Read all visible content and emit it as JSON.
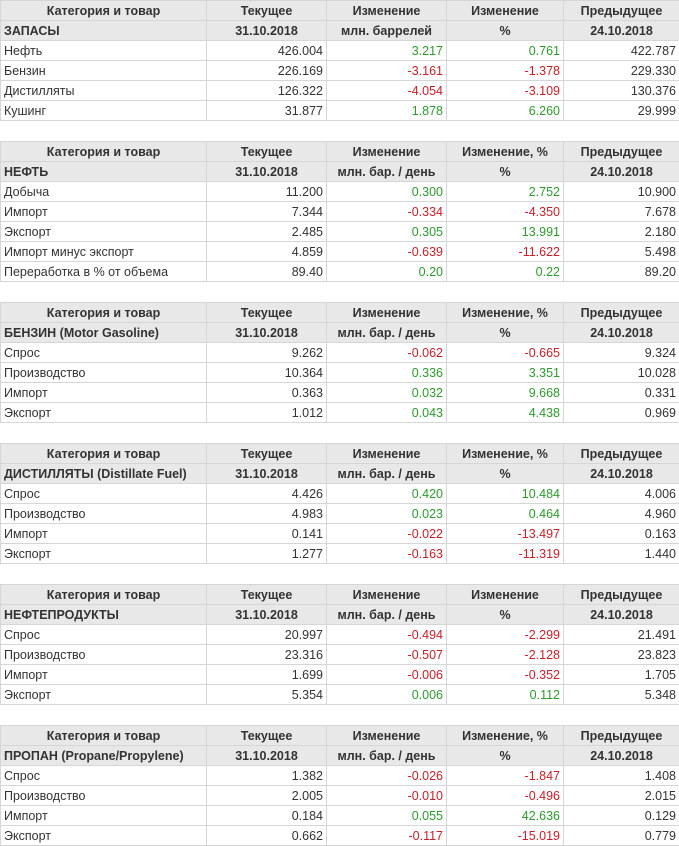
{
  "colors": {
    "positive": "#2e9a2e",
    "negative": "#c8202a",
    "header_bg": "#e8e8e8"
  },
  "tables": [
    {
      "headers": [
        "Категория и товар",
        "Текущее",
        "Изменение",
        "Изменение",
        "Предыдущее"
      ],
      "subheaders": [
        "ЗАПАСЫ",
        "31.10.2018",
        "млн. баррелей",
        "%",
        "24.10.2018"
      ],
      "rows": [
        [
          "Нефть",
          "426.004",
          "3.217",
          "0.761",
          "422.787"
        ],
        [
          "Бензин",
          "226.169",
          "-3.161",
          "-1.378",
          "229.330"
        ],
        [
          "Дистилляты",
          "126.322",
          "-4.054",
          "-3.109",
          "130.376"
        ],
        [
          "Кушинг",
          "31.877",
          "1.878",
          "6.260",
          "29.999"
        ]
      ]
    },
    {
      "headers": [
        "Категория и товар",
        "Текущее",
        "Изменение",
        "Изменение, %",
        "Предыдущее"
      ],
      "subheaders": [
        "НЕФТЬ",
        "31.10.2018",
        "млн. бар. / день",
        "%",
        "24.10.2018"
      ],
      "rows": [
        [
          "Добыча",
          "11.200",
          "0.300",
          "2.752",
          "10.900"
        ],
        [
          "Импорт",
          "7.344",
          "-0.334",
          "-4.350",
          "7.678"
        ],
        [
          "Экспорт",
          "2.485",
          "0.305",
          "13.991",
          "2.180"
        ],
        [
          "Импорт минус экспорт",
          "4.859",
          "-0.639",
          "-11.622",
          "5.498"
        ],
        [
          "Переработка в % от объема",
          "89.40",
          "0.20",
          "0.22",
          "89.20"
        ]
      ]
    },
    {
      "headers": [
        "Категория и товар",
        "Текущее",
        "Изменение",
        "Изменение, %",
        "Предыдущее"
      ],
      "subheaders": [
        "БЕНЗИН (Motor Gasoline)",
        "31.10.2018",
        "млн. бар. / день",
        "%",
        "24.10.2018"
      ],
      "rows": [
        [
          "Спрос",
          "9.262",
          "-0.062",
          "-0.665",
          "9.324"
        ],
        [
          "Производство",
          "10.364",
          "0.336",
          "3.351",
          "10.028"
        ],
        [
          "Импорт",
          "0.363",
          "0.032",
          "9.668",
          "0.331"
        ],
        [
          "Экспорт",
          "1.012",
          "0.043",
          "4.438",
          "0.969"
        ]
      ]
    },
    {
      "headers": [
        "Категория и товар",
        "Текущее",
        "Изменение",
        "Изменение, %",
        "Предыдущее"
      ],
      "subheaders": [
        "ДИСТИЛЛЯТЫ (Distillate Fuel)",
        "31.10.2018",
        "млн. бар. / день",
        "%",
        "24.10.2018"
      ],
      "rows": [
        [
          "Спрос",
          "4.426",
          "0.420",
          "10.484",
          "4.006"
        ],
        [
          "Производство",
          "4.983",
          "0.023",
          "0.464",
          "4.960"
        ],
        [
          "Импорт",
          "0.141",
          "-0.022",
          "-13.497",
          "0.163"
        ],
        [
          "Экспорт",
          "1.277",
          "-0.163",
          "-11.319",
          "1.440"
        ]
      ]
    },
    {
      "headers": [
        "Категория и товар",
        "Текущее",
        "Изменение",
        "Изменение",
        "Предыдущее"
      ],
      "subheaders": [
        "НЕФТЕПРОДУКТЫ",
        "31.10.2018",
        "млн. бар. / день",
        "%",
        "24.10.2018"
      ],
      "rows": [
        [
          "Спрос",
          "20.997",
          "-0.494",
          "-2.299",
          "21.491"
        ],
        [
          "Производство",
          "23.316",
          "-0.507",
          "-2.128",
          "23.823"
        ],
        [
          "Импорт",
          "1.699",
          "-0.006",
          "-0.352",
          "1.705"
        ],
        [
          "Экспорт",
          "5.354",
          "0.006",
          "0.112",
          "5.348"
        ]
      ]
    },
    {
      "headers": [
        "Категория и товар",
        "Текущее",
        "Изменение",
        "Изменение, %",
        "Предыдущее"
      ],
      "subheaders": [
        "ПРОПАН (Propane/Propylene)",
        "31.10.2018",
        "млн. бар. / день",
        "%",
        "24.10.2018"
      ],
      "rows": [
        [
          "Спрос",
          "1.382",
          "-0.026",
          "-1.847",
          "1.408"
        ],
        [
          "Производство",
          "2.005",
          "-0.010",
          "-0.496",
          "2.015"
        ],
        [
          "Импорт",
          "0.184",
          "0.055",
          "42.636",
          "0.129"
        ],
        [
          "Экспорт",
          "0.662",
          "-0.117",
          "-15.019",
          "0.779"
        ]
      ]
    }
  ]
}
